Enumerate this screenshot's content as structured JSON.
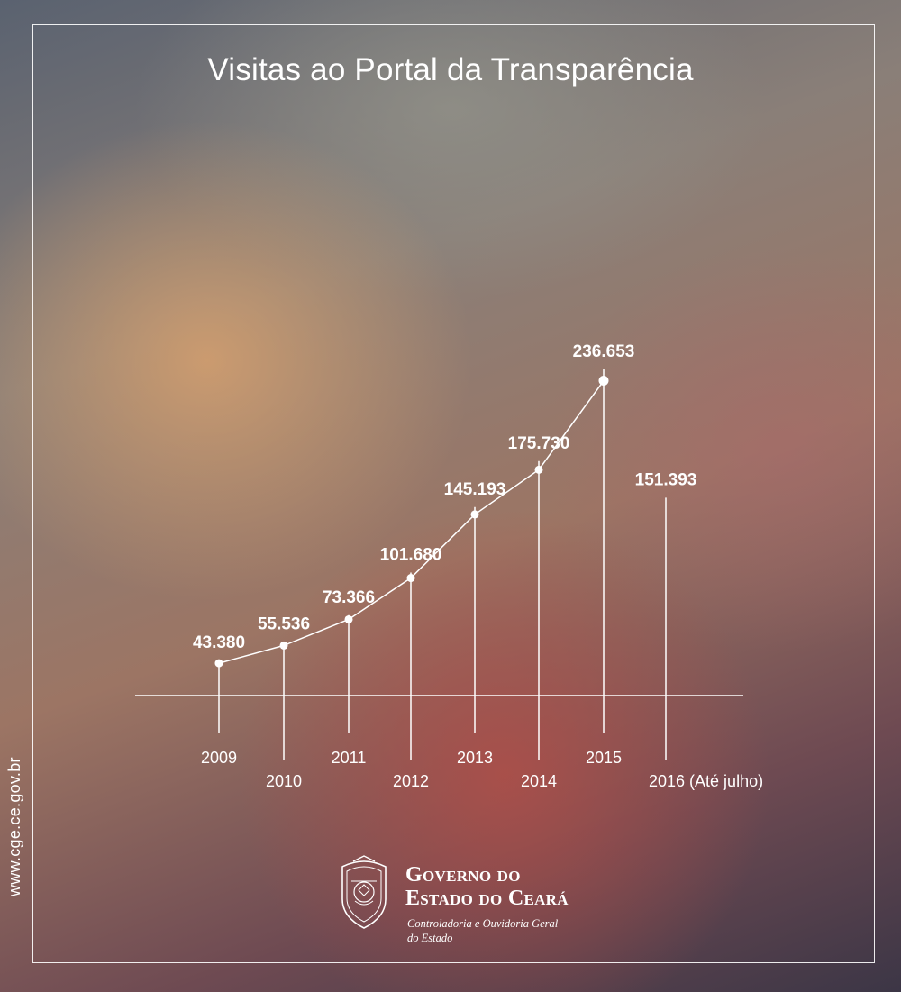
{
  "chart_data": {
    "type": "line",
    "title": "Visitas ao Portal da Transparência",
    "categories": [
      "2009",
      "2010",
      "2011",
      "2012",
      "2013",
      "2014",
      "2015",
      "2016 (Até julho)"
    ],
    "values": [
      43380,
      55536,
      73366,
      101680,
      145193,
      175730,
      236653,
      151393
    ],
    "value_labels": [
      "43.380",
      "55.536",
      "73.366",
      "101.680",
      "145.193",
      "175.730",
      "236.653",
      "151.393"
    ],
    "line_points": 7,
    "xlabel": "",
    "ylabel": "",
    "grid": false,
    "legend": "none"
  },
  "branding": {
    "side_url": "www.cge.ce.gov.br",
    "org_line1": "Governo do",
    "org_line2": "Estado do Ceará",
    "org_sub1": "Controladoria e Ouvidoria Geral",
    "org_sub2": "do Estado",
    "crest_icon": "state-coat-of-arms-icon"
  }
}
